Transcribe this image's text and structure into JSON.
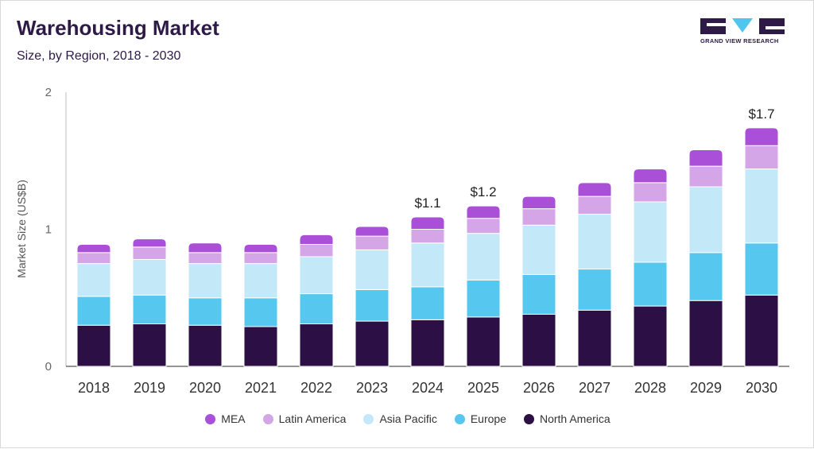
{
  "header": {
    "title": "Warehousing Market",
    "subtitle": "Size, by Region, 2018 - 2030"
  },
  "logo": {
    "text": "GRAND VIEW RESEARCH",
    "color": "#2d1a47",
    "accent": "#4fc6f0"
  },
  "chart_data": {
    "type": "bar",
    "stacked": true,
    "title": "Warehousing Market",
    "subtitle": "Size, by Region, 2018 - 2030",
    "xlabel": "",
    "ylabel": "Market Size (US$B)",
    "ylim": [
      0,
      2
    ],
    "yticks": [
      0,
      1,
      2
    ],
    "grid": false,
    "legend_position": "bottom",
    "categories": [
      "2018",
      "2019",
      "2020",
      "2021",
      "2022",
      "2023",
      "2024",
      "2025",
      "2026",
      "2027",
      "2028",
      "2029",
      "2030"
    ],
    "series": [
      {
        "name": "North America",
        "color": "#2c0f45",
        "values": [
          0.3,
          0.31,
          0.3,
          0.29,
          0.31,
          0.33,
          0.34,
          0.36,
          0.38,
          0.41,
          0.44,
          0.48,
          0.52
        ]
      },
      {
        "name": "Europe",
        "color": "#56c8ef",
        "values": [
          0.21,
          0.21,
          0.2,
          0.21,
          0.22,
          0.23,
          0.24,
          0.27,
          0.29,
          0.3,
          0.32,
          0.35,
          0.38
        ]
      },
      {
        "name": "Asia Pacific",
        "color": "#c3e9f8",
        "values": [
          0.24,
          0.26,
          0.25,
          0.25,
          0.27,
          0.29,
          0.32,
          0.34,
          0.36,
          0.4,
          0.44,
          0.48,
          0.54
        ]
      },
      {
        "name": "Latin America",
        "color": "#d4a6e8",
        "values": [
          0.08,
          0.09,
          0.08,
          0.08,
          0.09,
          0.1,
          0.1,
          0.11,
          0.12,
          0.13,
          0.14,
          0.15,
          0.17
        ]
      },
      {
        "name": "MEA",
        "color": "#a94fd8",
        "values": [
          0.06,
          0.06,
          0.07,
          0.06,
          0.07,
          0.07,
          0.09,
          0.09,
          0.09,
          0.1,
          0.1,
          0.12,
          0.13
        ]
      }
    ],
    "annotations": [
      {
        "category": "2024",
        "text": "$1.1"
      },
      {
        "category": "2025",
        "text": "$1.2"
      },
      {
        "category": "2030",
        "text": "$1.7"
      }
    ]
  }
}
